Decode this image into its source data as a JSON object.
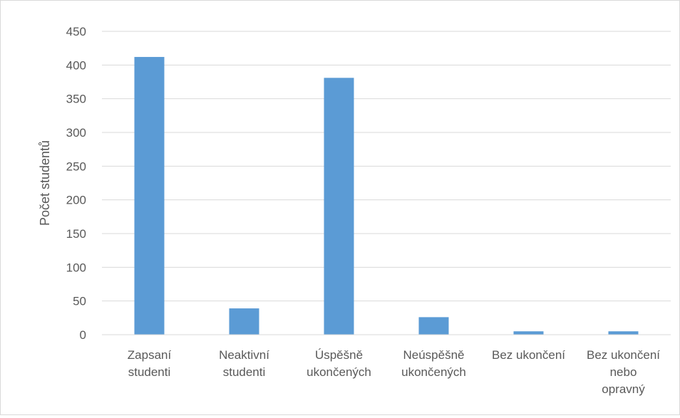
{
  "chart_data": {
    "type": "bar",
    "title": "",
    "xlabel": "",
    "ylabel": "Počet studentů",
    "ylim": [
      0,
      450
    ],
    "yticks": [
      0,
      50,
      100,
      150,
      200,
      250,
      300,
      350,
      400,
      450
    ],
    "grid": true,
    "categories": [
      [
        "Zapsaní",
        "studenti"
      ],
      [
        "Neaktivní",
        "studenti"
      ],
      [
        "Úspěšně",
        "ukončených"
      ],
      [
        "Neúspěšně",
        "ukončených"
      ],
      [
        "Bez ukončení"
      ],
      [
        "Bez ukončení",
        "nebo",
        "opravný"
      ]
    ],
    "values": [
      412,
      39,
      381,
      26,
      5,
      5
    ],
    "bar_color": "#5B9BD5",
    "grid_color": "#d9d9d9",
    "text_color": "#595959"
  }
}
